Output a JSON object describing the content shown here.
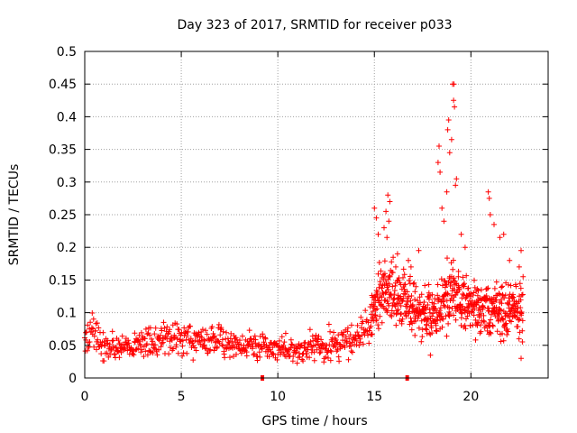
{
  "chart_data": {
    "type": "scatter",
    "title": "Day 323 of 2017, SRMTID for receiver p033",
    "xlabel": "GPS time / hours",
    "ylabel": "SRMTID / TECUs",
    "xlim": [
      0,
      24
    ],
    "ylim": [
      0,
      0.5
    ],
    "xticks": [
      0,
      5,
      10,
      15,
      20
    ],
    "yticks": [
      0,
      0.05,
      0.1,
      0.15,
      0.2,
      0.25,
      0.3,
      0.35,
      0.4,
      0.45,
      0.5
    ],
    "xtick_labels": [
      "0",
      "5",
      "10",
      "15",
      "20"
    ],
    "ytick_labels": [
      "0",
      "0.05",
      "0.1",
      "0.15",
      "0.2",
      "0.25",
      "0.3",
      "0.35",
      "0.4",
      "0.45",
      "0.5"
    ],
    "grid": true,
    "series_color": "#ff0000",
    "marker": "plus",
    "gap_markers_x": [
      9.2,
      16.7
    ],
    "profile": [
      {
        "x": 0.0,
        "base": 0.055,
        "spread": 0.035
      },
      {
        "x": 0.4,
        "base": 0.075,
        "spread": 0.05
      },
      {
        "x": 1.0,
        "base": 0.05,
        "spread": 0.04
      },
      {
        "x": 2.0,
        "base": 0.045,
        "spread": 0.03
      },
      {
        "x": 3.0,
        "base": 0.055,
        "spread": 0.04
      },
      {
        "x": 4.0,
        "base": 0.06,
        "spread": 0.045
      },
      {
        "x": 5.0,
        "base": 0.06,
        "spread": 0.04
      },
      {
        "x": 6.0,
        "base": 0.06,
        "spread": 0.045
      },
      {
        "x": 7.0,
        "base": 0.058,
        "spread": 0.04
      },
      {
        "x": 8.0,
        "base": 0.05,
        "spread": 0.035
      },
      {
        "x": 9.0,
        "base": 0.05,
        "spread": 0.04
      },
      {
        "x": 10.0,
        "base": 0.045,
        "spread": 0.03
      },
      {
        "x": 11.0,
        "base": 0.04,
        "spread": 0.03
      },
      {
        "x": 12.0,
        "base": 0.05,
        "spread": 0.04
      },
      {
        "x": 13.0,
        "base": 0.05,
        "spread": 0.04
      },
      {
        "x": 14.0,
        "base": 0.06,
        "spread": 0.04
      },
      {
        "x": 14.8,
        "base": 0.08,
        "spread": 0.05
      },
      {
        "x": 15.3,
        "base": 0.13,
        "spread": 0.08
      },
      {
        "x": 16.0,
        "base": 0.13,
        "spread": 0.09
      },
      {
        "x": 17.0,
        "base": 0.11,
        "spread": 0.07
      },
      {
        "x": 18.0,
        "base": 0.1,
        "spread": 0.06
      },
      {
        "x": 19.0,
        "base": 0.13,
        "spread": 0.09
      },
      {
        "x": 20.0,
        "base": 0.11,
        "spread": 0.07
      },
      {
        "x": 21.0,
        "base": 0.1,
        "spread": 0.06
      },
      {
        "x": 22.0,
        "base": 0.11,
        "spread": 0.07
      },
      {
        "x": 22.7,
        "base": 0.1,
        "spread": 0.06
      }
    ],
    "outliers": [
      {
        "x": 15.0,
        "y": 0.26
      },
      {
        "x": 15.1,
        "y": 0.245
      },
      {
        "x": 15.2,
        "y": 0.22
      },
      {
        "x": 15.5,
        "y": 0.23
      },
      {
        "x": 15.6,
        "y": 0.255
      },
      {
        "x": 15.7,
        "y": 0.28
      },
      {
        "x": 15.8,
        "y": 0.27
      },
      {
        "x": 15.75,
        "y": 0.24
      },
      {
        "x": 15.65,
        "y": 0.215
      },
      {
        "x": 16.2,
        "y": 0.19
      },
      {
        "x": 16.9,
        "y": 0.17
      },
      {
        "x": 17.3,
        "y": 0.195
      },
      {
        "x": 18.3,
        "y": 0.33
      },
      {
        "x": 18.35,
        "y": 0.355
      },
      {
        "x": 18.4,
        "y": 0.315
      },
      {
        "x": 18.5,
        "y": 0.26
      },
      {
        "x": 18.6,
        "y": 0.24
      },
      {
        "x": 18.75,
        "y": 0.285
      },
      {
        "x": 18.8,
        "y": 0.38
      },
      {
        "x": 18.85,
        "y": 0.395
      },
      {
        "x": 18.9,
        "y": 0.345
      },
      {
        "x": 19.0,
        "y": 0.365
      },
      {
        "x": 19.05,
        "y": 0.45
      },
      {
        "x": 19.12,
        "y": 0.45
      },
      {
        "x": 19.1,
        "y": 0.425
      },
      {
        "x": 19.15,
        "y": 0.415
      },
      {
        "x": 19.2,
        "y": 0.295
      },
      {
        "x": 19.25,
        "y": 0.305
      },
      {
        "x": 19.5,
        "y": 0.22
      },
      {
        "x": 19.7,
        "y": 0.2
      },
      {
        "x": 20.9,
        "y": 0.285
      },
      {
        "x": 20.95,
        "y": 0.275
      },
      {
        "x": 21.0,
        "y": 0.25
      },
      {
        "x": 21.2,
        "y": 0.235
      },
      {
        "x": 21.5,
        "y": 0.215
      },
      {
        "x": 21.7,
        "y": 0.22
      },
      {
        "x": 22.0,
        "y": 0.18
      },
      {
        "x": 22.5,
        "y": 0.17
      },
      {
        "x": 22.6,
        "y": 0.195
      },
      {
        "x": 22.7,
        "y": 0.155
      },
      {
        "x": 22.6,
        "y": 0.03
      },
      {
        "x": 17.9,
        "y": 0.035
      },
      {
        "x": 17.1,
        "y": 0.065
      }
    ]
  }
}
